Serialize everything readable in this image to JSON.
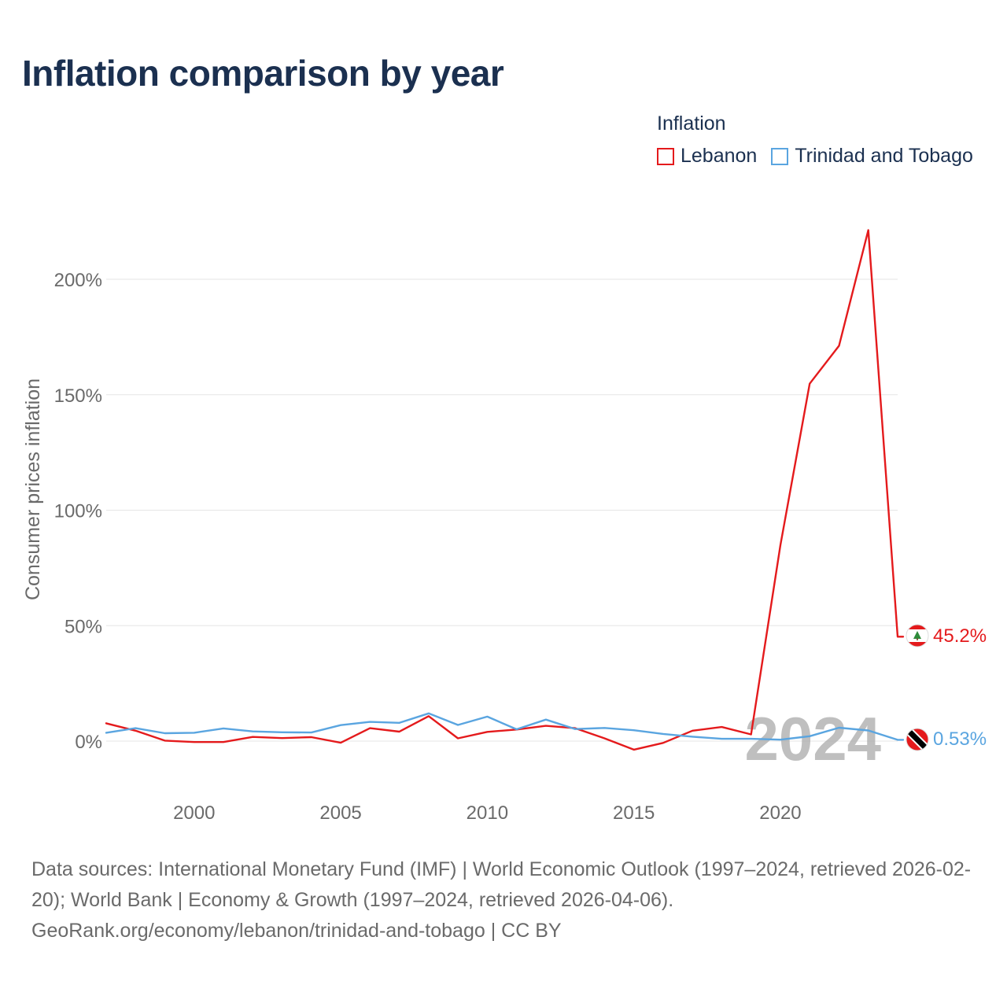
{
  "title": "Inflation comparison by year",
  "legend": {
    "title": "Inflation",
    "items": [
      {
        "label": "Lebanon",
        "color": "#e41a1c"
      },
      {
        "label": "Trinidad and Tobago",
        "color": "#5aa5e0"
      }
    ]
  },
  "year_watermark": "2024",
  "end_labels": {
    "lebanon": "45.2%",
    "trinidad": "0.53%"
  },
  "footer": {
    "sources": "Data sources: International Monetary Fund (IMF) | World Economic Outlook (1997–2024, retrieved 2026-02-20); World Bank | Economy & Growth (1997–2024, retrieved 2026-04-06).",
    "credit": "GeoRank.org/economy/lebanon/trinidad-and-tobago | CC BY"
  },
  "chart_data": {
    "type": "line",
    "title": "Inflation comparison by year",
    "xlabel": "",
    "ylabel": "Consumer prices inflation",
    "xlim": [
      1997,
      2024
    ],
    "ylim": [
      -22,
      230
    ],
    "yticks": [
      0,
      50,
      100,
      150,
      200
    ],
    "ytick_labels": [
      "0%",
      "50%",
      "100%",
      "150%",
      "200%"
    ],
    "xticks": [
      2000,
      2005,
      2010,
      2015,
      2020
    ],
    "xtick_labels": [
      "2000",
      "2005",
      "2010",
      "2015",
      "2020"
    ],
    "grid": true,
    "x": [
      1997,
      1998,
      1999,
      2000,
      2001,
      2002,
      2003,
      2004,
      2005,
      2006,
      2007,
      2008,
      2009,
      2010,
      2011,
      2012,
      2013,
      2014,
      2015,
      2016,
      2017,
      2018,
      2019,
      2020,
      2021,
      2022,
      2023,
      2024
    ],
    "series": [
      {
        "name": "Lebanon",
        "color": "#e41a1c",
        "values": [
          7.7,
          4.5,
          0.2,
          -0.4,
          -0.4,
          1.8,
          1.3,
          1.7,
          -0.7,
          5.6,
          4.1,
          10.8,
          1.2,
          4.0,
          5.0,
          6.6,
          5.6,
          1.2,
          -3.7,
          -0.8,
          4.5,
          6.1,
          2.9,
          84.9,
          154.8,
          171.2,
          221.3,
          45.2
        ]
      },
      {
        "name": "Trinidad and Tobago",
        "color": "#5aa5e0",
        "values": [
          3.6,
          5.6,
          3.4,
          3.6,
          5.5,
          4.2,
          3.8,
          3.7,
          6.9,
          8.3,
          7.9,
          12.0,
          7.0,
          10.6,
          5.1,
          9.3,
          5.2,
          5.7,
          4.7,
          3.1,
          1.9,
          1.0,
          1.0,
          0.6,
          2.1,
          5.8,
          4.6,
          0.53
        ]
      }
    ]
  }
}
